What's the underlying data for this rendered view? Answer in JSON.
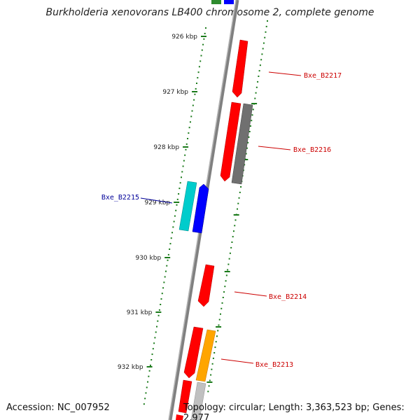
{
  "title": "Burkholderia xenovorans LB400 chromosome 2, complete genome",
  "footer": {
    "accession": "Accession: NC_007952",
    "topology": "Topology: circular; Length: 3,363,523 bp; Genes: 2,977"
  },
  "ruler": {
    "labels": [
      "926 kbp",
      "927 kbp",
      "928 kbp",
      "929 kbp",
      "930 kbp",
      "931 kbp",
      "932 kbp"
    ],
    "color": "#1a7a1a"
  },
  "genes": [
    {
      "name": "Bxe_B2217",
      "strand": "forward",
      "color": "#ff0000",
      "label_color": "#cc0000"
    },
    {
      "name": "Bxe_B2216",
      "strand": "forward",
      "color": "#ff0000",
      "label_color": "#cc0000"
    },
    {
      "name": "Bxe_B2215",
      "strand": "reverse",
      "color": "#0000ff",
      "label_color": "#000099"
    },
    {
      "name": "Bxe_B2214",
      "strand": "forward",
      "color": "#ff0000",
      "label_color": "#cc0000"
    },
    {
      "name": "Bxe_B2213",
      "strand": "forward",
      "color": "#ff0000",
      "label_color": "#cc0000"
    }
  ],
  "colors": {
    "backbone": "#808080",
    "cds_forward": "#ff0000",
    "cds_reverse": "#0000ff",
    "cds_cyan": "#00cccc",
    "cds_gray": "#707070",
    "cds_orange": "#ffa500",
    "cds_lightgray": "#c0c0c0",
    "cds_green": "#2e8b2e"
  }
}
